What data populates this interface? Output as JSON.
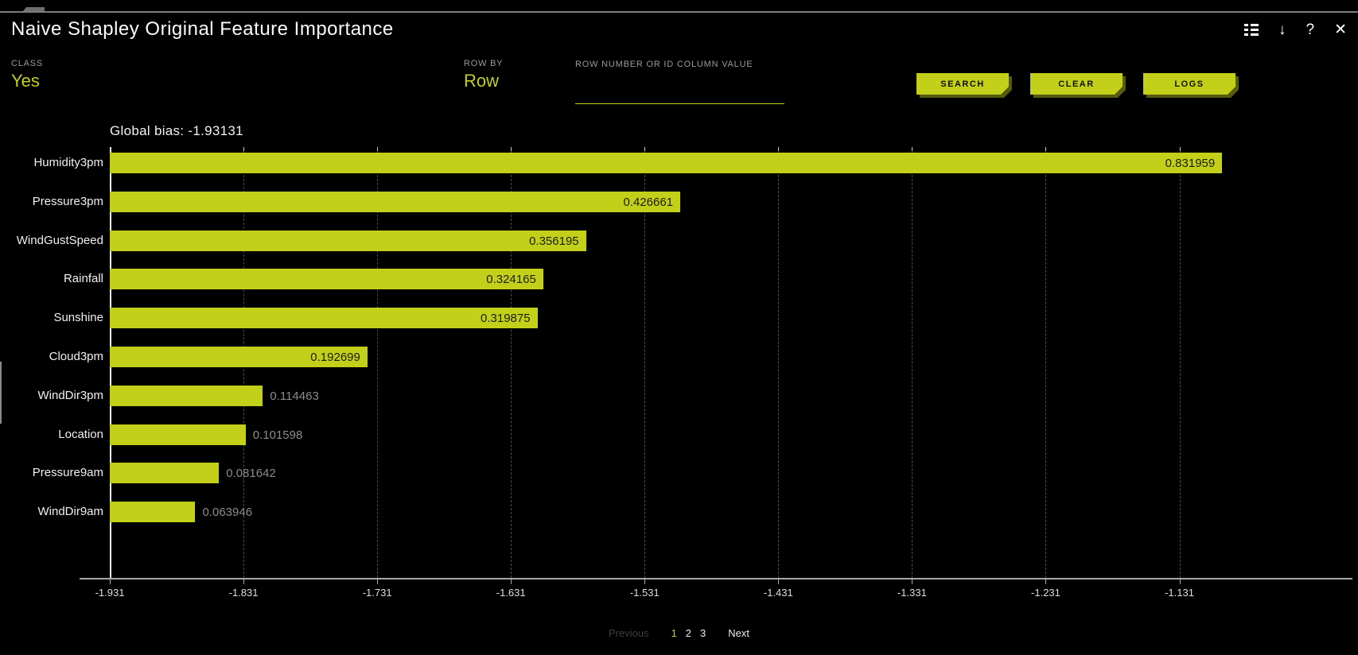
{
  "window": {
    "title": "Naive Shapley Original Feature Importance",
    "icons": {
      "download": "↓",
      "help": "?",
      "close": "✕"
    }
  },
  "controls": {
    "class_field": {
      "label": "CLASS",
      "value": "Yes"
    },
    "row_by_field": {
      "label": "ROW BY",
      "value": "Row"
    },
    "row_search": {
      "label": "ROW NUMBER OR ID COLUMN VALUE",
      "value": "",
      "placeholder": ""
    },
    "search_button": "SEARCH",
    "clear_button": "CLEAR",
    "logs_button": "LOGS"
  },
  "chart_data": {
    "type": "bar",
    "orientation": "horizontal",
    "title": "Global bias: -1.93131",
    "categories": [
      "Humidity3pm",
      "Pressure3pm",
      "WindGustSpeed",
      "Rainfall",
      "Sunshine",
      "Cloud3pm",
      "WindDir3pm",
      "Location",
      "Pressure9am",
      "WindDir9am"
    ],
    "values": [
      0.831959,
      0.426661,
      0.356195,
      0.324165,
      0.319875,
      0.192699,
      0.114463,
      0.101598,
      0.081642,
      0.063946
    ],
    "value_labels": [
      "0.831959",
      "0.426661",
      "0.356195",
      "0.324165",
      "0.319875",
      "0.192699",
      "0.114463",
      "0.101598",
      "0.081642",
      "0.063946"
    ],
    "x_ticks": [
      "-1.931",
      "-1.831",
      "-1.731",
      "-1.631",
      "-1.531",
      "-1.431",
      "-1.331",
      "-1.231",
      "-1.131"
    ],
    "xlim": [
      -1.931,
      -1.098
    ],
    "x_tick_step": 0.1,
    "grid": "dashed-vertical",
    "bar_color": "#c3d01a",
    "legend": "none"
  },
  "pagination": {
    "previous": "Previous",
    "pages": [
      "1",
      "2",
      "3"
    ],
    "active_page": "1",
    "next": "Next"
  },
  "colors": {
    "accent": "#c3d01a",
    "background": "#000000",
    "label_gray": "#9b9b9b",
    "value_inside_text": "#1c1e04",
    "value_outside_text": "#8c8c8c"
  }
}
